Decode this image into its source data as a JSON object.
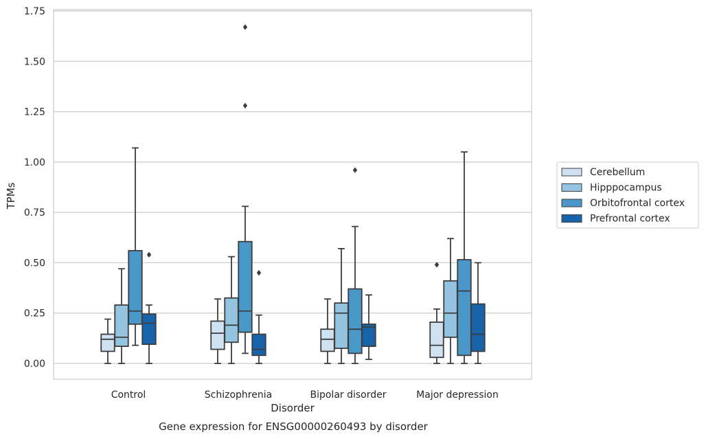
{
  "chart_data": {
    "type": "boxplot",
    "title": "Gene expression for ENSG00000260493 by disorder",
    "xlabel": "Disorder",
    "ylabel": "TPMs",
    "ylim": [
      -0.08,
      1.76
    ],
    "yticks": [
      "0.00",
      "0.25",
      "0.50",
      "0.75",
      "1.00",
      "1.25",
      "1.50",
      "1.75"
    ],
    "ytick_values": [
      0,
      0.25,
      0.5,
      0.75,
      1.0,
      1.25,
      1.5,
      1.75
    ],
    "grid": "horizontal",
    "legend_placement": "right",
    "categories": [
      "Control",
      "Schizophrenia",
      "Bipolar disorder",
      "Major depression"
    ],
    "series": [
      {
        "name": "Cerebellum",
        "color": "#d0e1f2",
        "boxes": [
          {
            "whislo": 0.0,
            "q1": 0.06,
            "med": 0.12,
            "q3": 0.145,
            "whishi": 0.22,
            "fliers": []
          },
          {
            "whislo": 0.0,
            "q1": 0.07,
            "med": 0.15,
            "q3": 0.21,
            "whishi": 0.32,
            "fliers": []
          },
          {
            "whislo": 0.0,
            "q1": 0.06,
            "med": 0.12,
            "q3": 0.17,
            "whishi": 0.32,
            "fliers": []
          },
          {
            "whislo": 0.0,
            "q1": 0.03,
            "med": 0.09,
            "q3": 0.205,
            "whishi": 0.27,
            "fliers": [
              0.49
            ]
          }
        ]
      },
      {
        "name": "Hipppocampus",
        "color": "#94c4df",
        "boxes": [
          {
            "whislo": 0.0,
            "q1": 0.085,
            "med": 0.13,
            "q3": 0.29,
            "whishi": 0.47,
            "fliers": []
          },
          {
            "whislo": 0.0,
            "q1": 0.105,
            "med": 0.19,
            "q3": 0.325,
            "whishi": 0.53,
            "fliers": []
          },
          {
            "whislo": 0.0,
            "q1": 0.075,
            "med": 0.25,
            "q3": 0.3,
            "whishi": 0.57,
            "fliers": []
          },
          {
            "whislo": 0.0,
            "q1": 0.13,
            "med": 0.25,
            "q3": 0.41,
            "whishi": 0.62,
            "fliers": []
          }
        ]
      },
      {
        "name": "Orbitofrontal cortex",
        "color": "#4a98c9",
        "boxes": [
          {
            "whislo": 0.09,
            "q1": 0.195,
            "med": 0.26,
            "q3": 0.56,
            "whishi": 1.07,
            "fliers": []
          },
          {
            "whislo": 0.05,
            "q1": 0.155,
            "med": 0.26,
            "q3": 0.605,
            "whishi": 0.78,
            "fliers": [
              1.28,
              1.67
            ]
          },
          {
            "whislo": 0.0,
            "q1": 0.05,
            "med": 0.17,
            "q3": 0.37,
            "whishi": 0.68,
            "fliers": [
              0.96
            ]
          },
          {
            "whislo": 0.0,
            "q1": 0.04,
            "med": 0.36,
            "q3": 0.515,
            "whishi": 1.05,
            "fliers": []
          }
        ]
      },
      {
        "name": "Prefrontal cortex",
        "color": "#1764ab",
        "boxes": [
          {
            "whislo": 0.0,
            "q1": 0.095,
            "med": 0.2,
            "q3": 0.245,
            "whishi": 0.29,
            "fliers": [
              0.54
            ]
          },
          {
            "whislo": 0.0,
            "q1": 0.04,
            "med": 0.07,
            "q3": 0.145,
            "whishi": 0.24,
            "fliers": [
              0.45
            ]
          },
          {
            "whislo": 0.02,
            "q1": 0.085,
            "med": 0.18,
            "q3": 0.195,
            "whishi": 0.34,
            "fliers": []
          },
          {
            "whislo": 0.0,
            "q1": 0.06,
            "med": 0.145,
            "q3": 0.295,
            "whishi": 0.5,
            "fliers": []
          }
        ]
      }
    ],
    "colors": {
      "grid": "#cccccc",
      "frame": "#cccccc",
      "line": "#3d3d3d"
    }
  }
}
